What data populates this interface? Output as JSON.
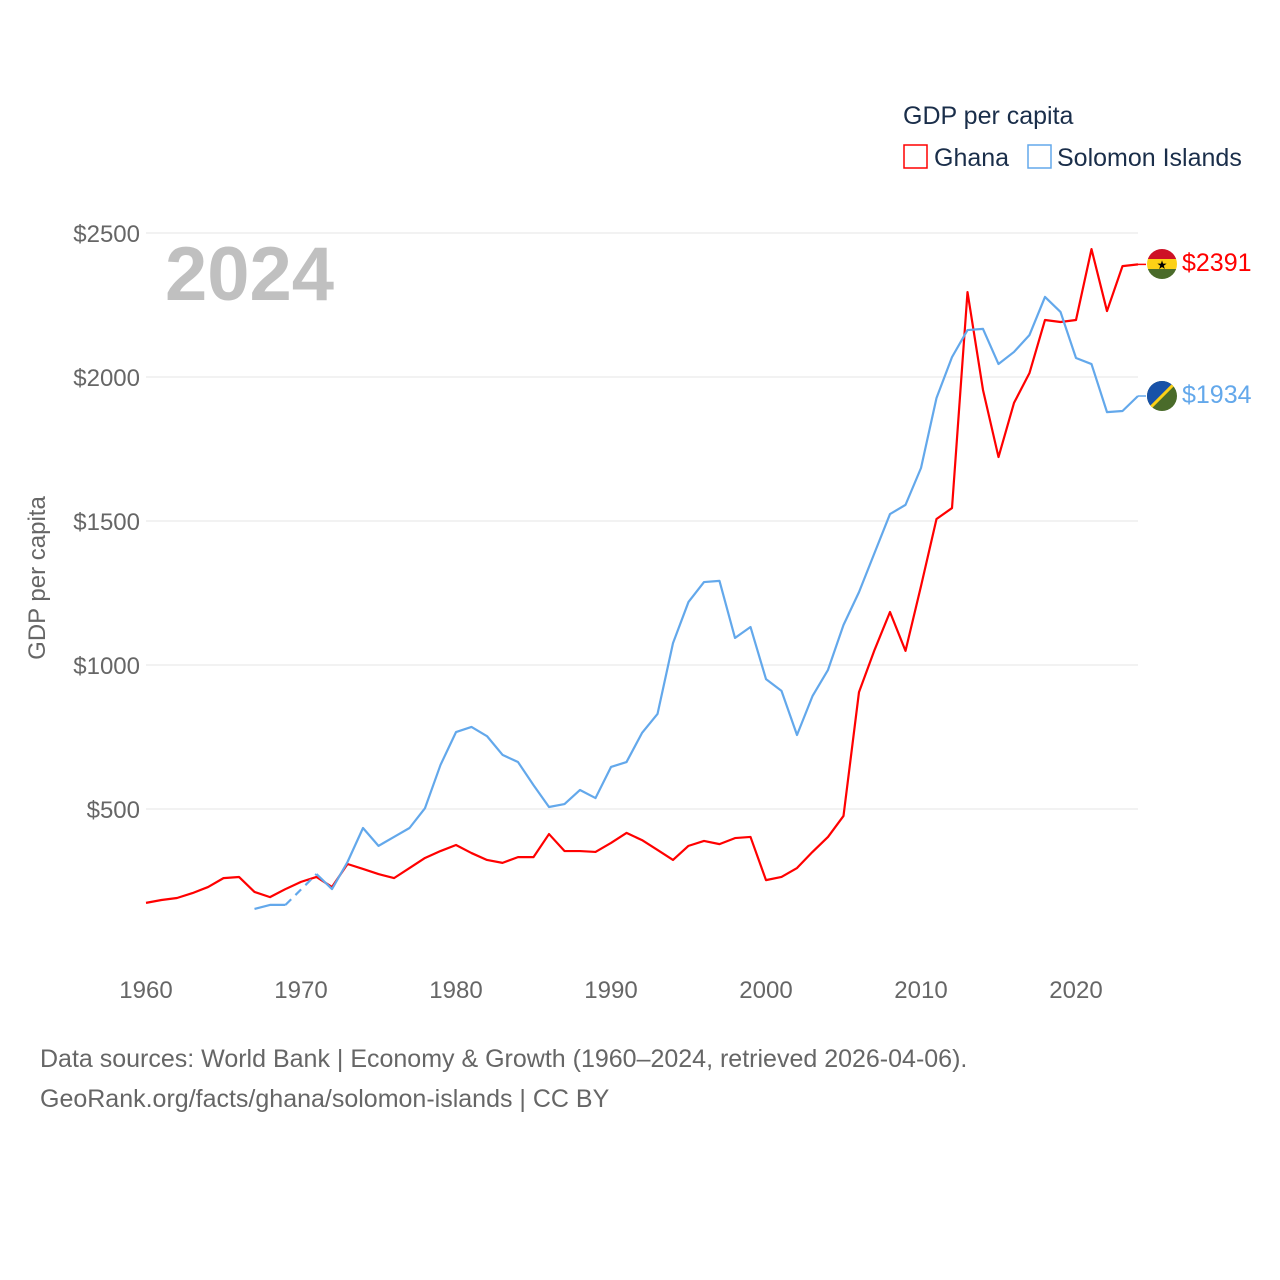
{
  "chart_data": {
    "type": "line",
    "title": "GDP per capita",
    "ylabel": "GDP per capita",
    "xlabel": "",
    "year_label": "2024",
    "ylim": [
      0,
      2500
    ],
    "xlim": [
      1960,
      2024
    ],
    "yticks": [
      500,
      1000,
      1500,
      2000,
      2500
    ],
    "ytick_labels": [
      "$500",
      "$1000",
      "$1500",
      "$2000",
      "$2500"
    ],
    "xticks": [
      1960,
      1970,
      1980,
      1990,
      2000,
      2010,
      2020
    ],
    "xtick_labels": [
      "1960",
      "1970",
      "1980",
      "1990",
      "2000",
      "2010",
      "2020"
    ],
    "grid": true,
    "legend_position": "top-right",
    "series": [
      {
        "name": "Ghana",
        "color": "#ff0000",
        "end_label": "$2391",
        "flag": "ghana-flag",
        "x_start": 1960,
        "values": [
          174,
          184,
          191,
          208,
          229,
          260,
          264,
          212,
          194,
          222,
          247,
          264,
          229,
          309,
          292,
          274,
          260,
          295,
          330,
          354,
          375,
          347,
          323,
          313,
          333,
          333,
          413,
          354,
          354,
          351,
          382,
          417,
          392,
          358,
          323,
          372,
          389,
          378,
          399,
          403,
          253,
          264,
          295,
          351,
          403,
          476,
          906,
          1052,
          1184,
          1049,
          1274,
          1507,
          1545,
          2295,
          1955,
          1722,
          1910,
          2014,
          2198,
          2191,
          2198,
          2444,
          2229,
          2385,
          2391
        ]
      },
      {
        "name": "Solomon Islands",
        "color": "#63a8eb",
        "end_label": "$1934",
        "flag": "solomon-islands-flag",
        "x_start": 1967,
        "values": [
          153,
          167,
          167,
          null,
          274,
          222,
          316,
          434,
          372,
          403,
          434,
          503,
          653,
          767,
          785,
          753,
          688,
          663,
          583,
          507,
          517,
          566,
          538,
          646,
          663,
          764,
          830,
          1076,
          1219,
          1288,
          1292,
          1094,
          1132,
          951,
          910,
          757,
          892,
          983,
          1139,
          1253,
          1389,
          1524,
          1556,
          1684,
          1927,
          2069,
          2163,
          2167,
          2045,
          2087,
          2146,
          2278,
          2226,
          2066,
          2045,
          1878,
          1882,
          1934
        ]
      }
    ]
  },
  "footer": {
    "line1": "Data sources: World Bank | Economy & Growth (1960–2024, retrieved 2026-04-06).",
    "line2": "GeoRank.org/facts/ghana/solomon-islands | CC BY"
  }
}
